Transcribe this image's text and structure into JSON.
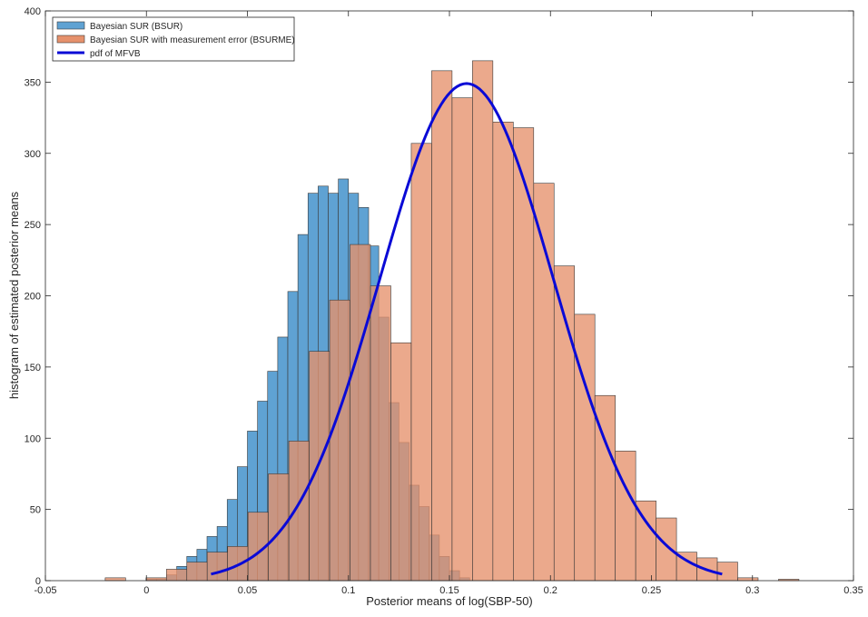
{
  "chart_data": {
    "type": "bar",
    "xlabel": "Posterior means of log(SBP-50)",
    "ylabel": "histogram of estimated posterior means",
    "xlim": [
      -0.05,
      0.35
    ],
    "ylim": [
      0,
      400
    ],
    "xticks": [
      "-0.05",
      "0",
      "0.05",
      "0.1",
      "0.15",
      "0.2",
      "0.25",
      "0.3",
      "0.35"
    ],
    "xtick_values": [
      -0.05,
      0,
      0.05,
      0.1,
      0.15,
      0.2,
      0.25,
      0.3,
      0.35
    ],
    "yticks": [
      "0",
      "50",
      "100",
      "150",
      "200",
      "250",
      "300",
      "350",
      "400"
    ],
    "ytick_values": [
      0,
      50,
      100,
      150,
      200,
      250,
      300,
      350,
      400
    ],
    "grid": false,
    "legend_position": "top-left",
    "colors": {
      "bsur_fill": "#5fa2d3",
      "bsurme_fill": "#e6916c",
      "overlap_fill": "#a06c5f",
      "edge": "#3a3a3a",
      "pdf_line": "#0a0ad6"
    },
    "series": [
      {
        "name": "Bayesian SUR (BSUR)",
        "bin_width": 0.005,
        "bin_edges_start": 0,
        "counts": [
          1,
          1,
          4,
          10,
          17,
          22,
          31,
          38,
          57,
          80,
          105,
          126,
          147,
          171,
          203,
          243,
          272,
          277,
          272,
          282,
          272,
          262,
          235,
          185,
          125,
          97,
          67,
          52,
          32,
          17,
          7,
          2,
          0,
          0
        ]
      },
      {
        "name": "Bayesian SUR with measurement error (BSURME)",
        "bin_width": 0.0101,
        "bin_edges_start": -0.0204,
        "counts": [
          2,
          0,
          2,
          8,
          13,
          20,
          24,
          48,
          75,
          98,
          161,
          197,
          236,
          207,
          167,
          307,
          358,
          339,
          365,
          322,
          318,
          279,
          221,
          187,
          130,
          91,
          56,
          44,
          20,
          16,
          13,
          2,
          0,
          1
        ]
      },
      {
        "name": "pdf of MFVB",
        "type": "line",
        "mean": 0.1585,
        "sd": 0.043,
        "peak": 349,
        "x_range": [
          0.032,
          0.285
        ]
      }
    ]
  }
}
